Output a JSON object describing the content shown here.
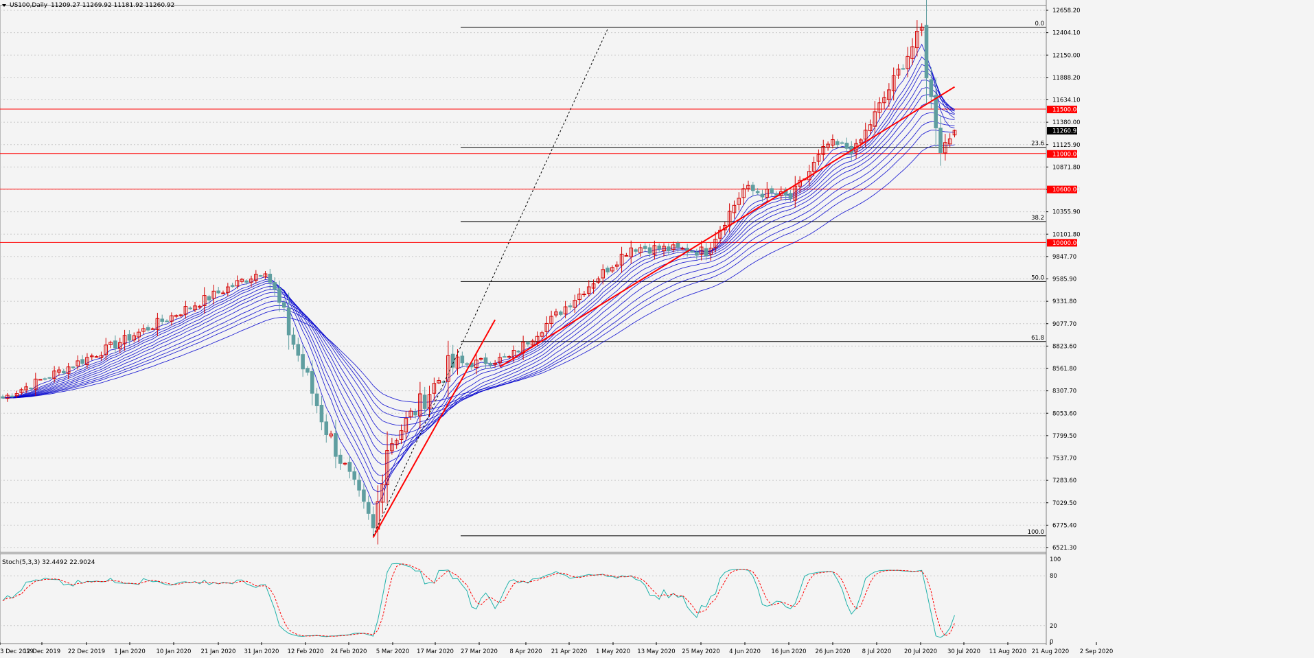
{
  "header": {
    "symbol_label": "US100,Daily",
    "ohlc_label": "11209.27 11269.92 11181.92 11260.92"
  },
  "colors": {
    "background": "#f4f4f4",
    "grid": "#c8c8c8",
    "bull_candle": "#d40000",
    "bear_candle": "#5f9ea0",
    "ribbon": "#0000cc",
    "trendline": "#ff0000",
    "level_line": "#ff0000",
    "fib_line": "#000000",
    "stoch_main": "#20b2aa",
    "stoch_signal": "#ff0000"
  },
  "chart_data": {
    "type": "candlestick",
    "instrument": "US100",
    "timeframe": "Daily",
    "ylim": [
      6521.3,
      12658.2
    ],
    "price_axis_labels": [
      "12658.20",
      "12404.10",
      "12150.00",
      "11888.20",
      "11634.10",
      "11380.00",
      "11125.90",
      "10871.80",
      "10610.00",
      "10355.90",
      "10101.80",
      "9847.70",
      "9585.90",
      "9331.80",
      "9077.70",
      "8823.60",
      "8561.80",
      "8307.70",
      "8053.60",
      "7799.50",
      "7537.70",
      "7283.60",
      "7029.50",
      "6775.40",
      "6521.30"
    ],
    "date_axis_labels": [
      "3 Dec 2019",
      "12 Dec 2019",
      "22 Dec 2019",
      "1 Jan 2020",
      "10 Jan 2020",
      "21 Jan 2020",
      "31 Jan 2020",
      "12 Feb 2020",
      "24 Feb 2020",
      "5 Mar 2020",
      "17 Mar 2020",
      "27 Mar 2020",
      "8 Apr 2020",
      "21 Apr 2020",
      "1 May 2020",
      "13 May 2020",
      "25 May 2020",
      "4 Jun 2020",
      "16 Jun 2020",
      "26 Jun 2020",
      "8 Jul 2020",
      "20 Jul 2020",
      "30 Jul 2020",
      "11 Aug 2020",
      "21 Aug 2020",
      "2 Sep 2020"
    ],
    "current_price": "11260.92",
    "last_candle": {
      "open": 11209.27,
      "high": 11269.92,
      "low": 11181.92,
      "close": 11260.92
    },
    "price_anchors": [
      {
        "date": "2019-12-03",
        "close": 8250
      },
      {
        "date": "2020-01-02",
        "close": 8800
      },
      {
        "date": "2020-02-19",
        "close": 9700
      },
      {
        "date": "2020-03-09",
        "close": 7900
      },
      {
        "date": "2020-03-20",
        "close": 6900
      },
      {
        "date": "2020-03-23",
        "close": 6760
      },
      {
        "date": "2020-03-26",
        "close": 7700
      },
      {
        "date": "2020-04-14",
        "close": 8600
      },
      {
        "date": "2020-05-01",
        "close": 8700
      },
      {
        "date": "2020-06-08",
        "close": 9950
      },
      {
        "date": "2020-06-30",
        "close": 9900
      },
      {
        "date": "2020-07-10",
        "close": 10600
      },
      {
        "date": "2020-07-24",
        "close": 10500
      },
      {
        "date": "2020-08-05",
        "close": 11100
      },
      {
        "date": "2020-08-13",
        "close": 11050
      },
      {
        "date": "2020-09-02",
        "close": 12400
      },
      {
        "date": "2020-09-03",
        "close": 11900
      },
      {
        "date": "2020-09-08",
        "close": 11050
      },
      {
        "date": "2020-09-11",
        "close": 11260.92
      }
    ],
    "horizontal_levels": [
      {
        "label": "11500.00",
        "value": 11500
      },
      {
        "label": "11000.00",
        "value": 11000
      },
      {
        "label": "10600.00",
        "value": 10600
      },
      {
        "label": "10000.00",
        "value": 10000
      }
    ],
    "fibonacci": {
      "high": 12420,
      "low": 6700,
      "levels": [
        {
          "label": "0.0",
          "ratio": 0.0
        },
        {
          "label": "23.6",
          "ratio": 0.236
        },
        {
          "label": "38.2",
          "ratio": 0.382
        },
        {
          "label": "50.0",
          "ratio": 0.5
        },
        {
          "label": "61.8",
          "ratio": 0.618
        },
        {
          "label": "100.0",
          "ratio": 1.0
        }
      ]
    },
    "trendlines": [
      {
        "from": {
          "date": "2020-03-23",
          "price": 6680
        },
        "to": {
          "date": "2020-04-28",
          "price": 9130
        }
      },
      {
        "from": {
          "date": "2020-04-29",
          "price": 8600
        },
        "to": {
          "date": "2020-09-15",
          "price": 11750
        }
      }
    ],
    "dashed_line": {
      "from": {
        "date": "2020-03-23",
        "price": 6700
      },
      "to": {
        "date": "2020-06-01",
        "price": 12400
      }
    },
    "ribbon_periods": [
      5,
      8,
      10,
      12,
      15,
      18,
      21,
      25,
      30,
      35,
      40,
      50
    ],
    "stochastic": {
      "label": "Stoch(5,3,3) 32.4492 22.9024",
      "main": 32.4492,
      "signal": 22.9024,
      "ylim": [
        0,
        100
      ],
      "axis_labels": [
        "100",
        "80",
        "20",
        "0"
      ]
    }
  }
}
